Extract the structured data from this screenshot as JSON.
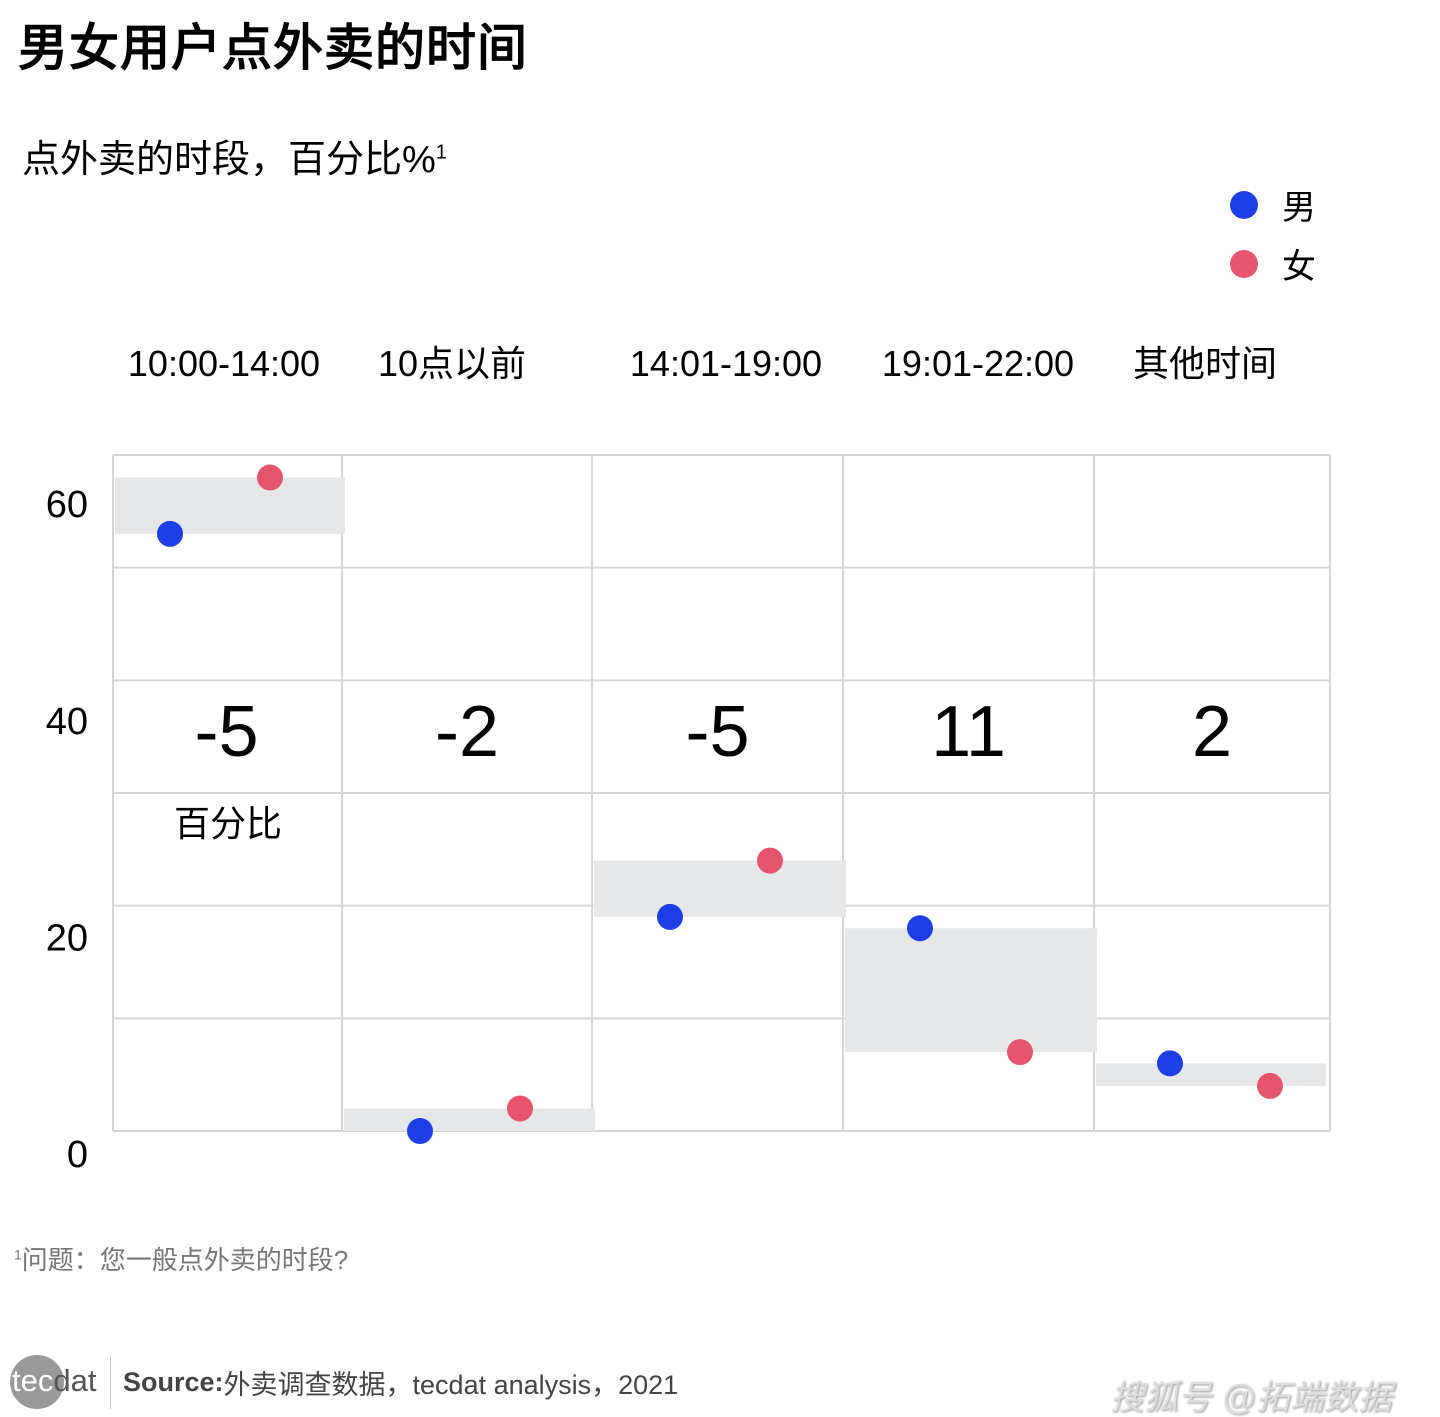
{
  "title": "男女用户点外卖的时间",
  "subtitle": "点外卖的时段，百分比%",
  "subtitle_sup": "1",
  "footnote_sup": "1",
  "footnote": "问题：您一般点外卖的时段?",
  "footer": {
    "logo": "tecdat",
    "source_label": "Source:",
    "source_text": " 外卖调查数据，tecdat analysis，2021"
  },
  "watermark": "搜狐号 @拓端数据",
  "colors": {
    "male": "#1f3fe6",
    "female": "#e5566e",
    "band": "#e6e7e9",
    "grid": "#d6d6d6"
  },
  "chart_data": {
    "type": "scatter",
    "title": "点外卖的时段，百分比%",
    "categories": [
      "10:00-14:00",
      "10点以前",
      "14:01-19:00",
      "19:01-22:00",
      "其他时间"
    ],
    "series": [
      {
        "name": "男",
        "values": [
          53,
          0,
          19,
          18,
          6
        ]
      },
      {
        "name": "女",
        "values": [
          58,
          2,
          24,
          7,
          4
        ]
      }
    ],
    "differences": [
      "-5",
      "-2",
      "-5",
      "11",
      "2"
    ],
    "difference_label": "百分比",
    "yticks": [
      0,
      20,
      40,
      60
    ],
    "ylim": [
      0,
      60
    ],
    "grid": true,
    "legend": "top-right"
  }
}
